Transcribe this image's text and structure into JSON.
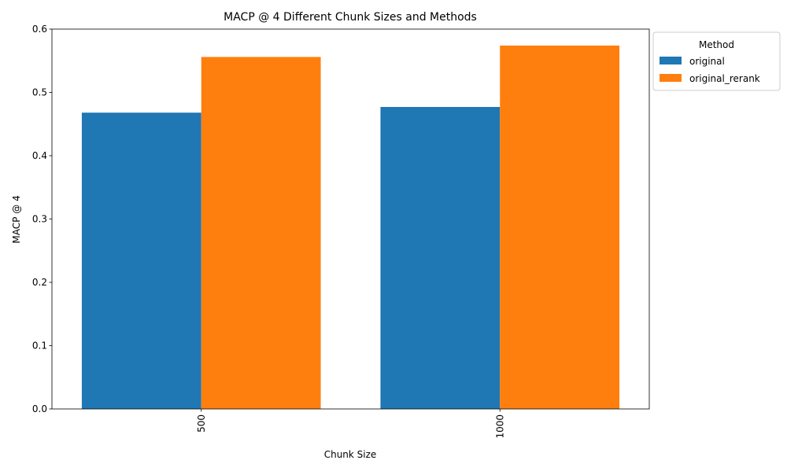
{
  "chart_data": {
    "type": "bar",
    "title": "MACP @ 4 Different Chunk Sizes and Methods",
    "xlabel": "Chunk Size",
    "ylabel": "MACP @ 4",
    "categories": [
      "500",
      "1000"
    ],
    "series": [
      {
        "name": "original",
        "values": [
          0.468,
          0.477
        ],
        "color": "#1f77b4"
      },
      {
        "name": "original_rerank",
        "values": [
          0.556,
          0.574
        ],
        "color": "#ff7f0e"
      }
    ],
    "ylim": [
      0,
      0.6
    ],
    "yticks": [
      0.0,
      0.1,
      0.2,
      0.3,
      0.4,
      0.5,
      0.6
    ],
    "ytick_labels": [
      "0.0",
      "0.1",
      "0.2",
      "0.3",
      "0.4",
      "0.5",
      "0.6"
    ],
    "xtick_rotation": "vertical",
    "grid": false,
    "legend": {
      "title": "Method",
      "placement": "outside upper right"
    }
  }
}
